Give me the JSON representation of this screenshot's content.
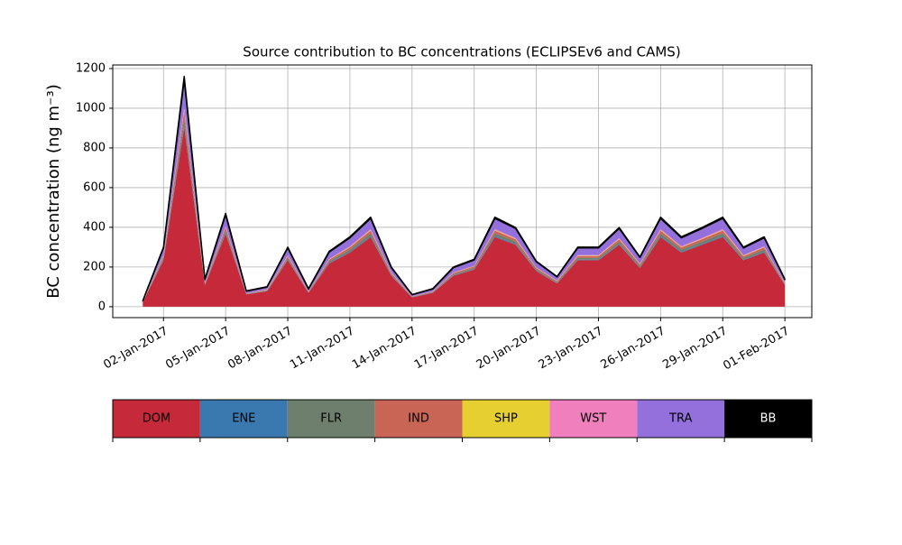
{
  "chart_data": {
    "type": "stacked_area",
    "title": "Source contribution to BC concentrations (ECLIPSEv6 and CAMS)",
    "ylabel": "BC concentration (ng m⁻³)",
    "x": [
      "01-Jan-2017",
      "02-Jan-2017",
      "03-Jan-2017",
      "04-Jan-2017",
      "05-Jan-2017",
      "06-Jan-2017",
      "07-Jan-2017",
      "08-Jan-2017",
      "09-Jan-2017",
      "10-Jan-2017",
      "11-Jan-2017",
      "12-Jan-2017",
      "13-Jan-2017",
      "14-Jan-2017",
      "15-Jan-2017",
      "16-Jan-2017",
      "17-Jan-2017",
      "18-Jan-2017",
      "19-Jan-2017",
      "20-Jan-2017",
      "21-Jan-2017",
      "22-Jan-2017",
      "23-Jan-2017",
      "24-Jan-2017",
      "25-Jan-2017",
      "26-Jan-2017",
      "27-Jan-2017",
      "28-Jan-2017",
      "29-Jan-2017",
      "30-Jan-2017",
      "31-Jan-2017",
      "01-Feb-2017"
    ],
    "xticks": [
      "02-Jan-2017",
      "05-Jan-2017",
      "08-Jan-2017",
      "11-Jan-2017",
      "14-Jan-2017",
      "17-Jan-2017",
      "20-Jan-2017",
      "23-Jan-2017",
      "26-Jan-2017",
      "29-Jan-2017",
      "01-Feb-2017"
    ],
    "ylim": [
      -55,
      1218
    ],
    "yticks": [
      0,
      200,
      400,
      600,
      800,
      1000,
      1200
    ],
    "grid": true,
    "series": [
      {
        "name": "DOM",
        "color": "#c62a3a",
        "values": [
          23,
          234,
          905,
          109,
          367,
          62,
          78,
          234,
          70,
          218,
          273,
          351,
          156,
          47,
          70,
          156,
          187,
          351,
          312,
          179,
          117,
          234,
          234,
          312,
          195,
          351,
          273,
          312,
          351,
          234,
          273,
          109
        ]
      },
      {
        "name": "ENE",
        "color": "#3a78b0",
        "values": [
          0,
          3,
          12,
          1,
          5,
          1,
          1,
          3,
          1,
          3,
          4,
          5,
          2,
          1,
          1,
          2,
          2,
          5,
          4,
          2,
          2,
          3,
          3,
          4,
          3,
          5,
          4,
          4,
          5,
          3,
          4,
          1
        ]
      },
      {
        "name": "FLR",
        "color": "#6e7f6e",
        "values": [
          1,
          9,
          35,
          4,
          14,
          2,
          3,
          9,
          3,
          8,
          11,
          14,
          6,
          2,
          3,
          6,
          7,
          14,
          12,
          7,
          5,
          9,
          9,
          12,
          8,
          14,
          11,
          12,
          14,
          9,
          11,
          4
        ]
      },
      {
        "name": "IND",
        "color": "#c96555",
        "values": [
          1,
          9,
          35,
          4,
          14,
          2,
          3,
          9,
          3,
          8,
          11,
          14,
          6,
          2,
          3,
          6,
          7,
          14,
          12,
          7,
          5,
          9,
          9,
          12,
          8,
          14,
          11,
          12,
          14,
          9,
          11,
          4
        ]
      },
      {
        "name": "SHP",
        "color": "#e6cf30",
        "values": [
          0,
          2,
          6,
          1,
          2,
          0,
          1,
          2,
          0,
          1,
          2,
          2,
          1,
          0,
          0,
          1,
          1,
          2,
          2,
          1,
          1,
          2,
          2,
          2,
          1,
          2,
          2,
          2,
          2,
          2,
          2,
          1
        ]
      },
      {
        "name": "WST",
        "color": "#f07fbd",
        "values": [
          0,
          3,
          12,
          1,
          5,
          1,
          1,
          3,
          1,
          3,
          4,
          5,
          2,
          1,
          1,
          2,
          2,
          5,
          4,
          2,
          2,
          3,
          3,
          4,
          3,
          5,
          4,
          4,
          5,
          3,
          4,
          1
        ]
      },
      {
        "name": "TRA",
        "color": "#9370db",
        "values": [
          4,
          36,
          139,
          17,
          56,
          10,
          12,
          36,
          11,
          34,
          42,
          54,
          24,
          7,
          11,
          24,
          29,
          54,
          48,
          28,
          18,
          36,
          36,
          48,
          30,
          54,
          42,
          48,
          54,
          36,
          42,
          17
        ]
      },
      {
        "name": "BB",
        "color": "#000000",
        "values": [
          1,
          4,
          16,
          3,
          7,
          2,
          2,
          4,
          2,
          4,
          5,
          6,
          3,
          1,
          2,
          3,
          4,
          6,
          5,
          3,
          2,
          4,
          4,
          5,
          3,
          6,
          5,
          5,
          6,
          4,
          5,
          2
        ]
      }
    ]
  }
}
